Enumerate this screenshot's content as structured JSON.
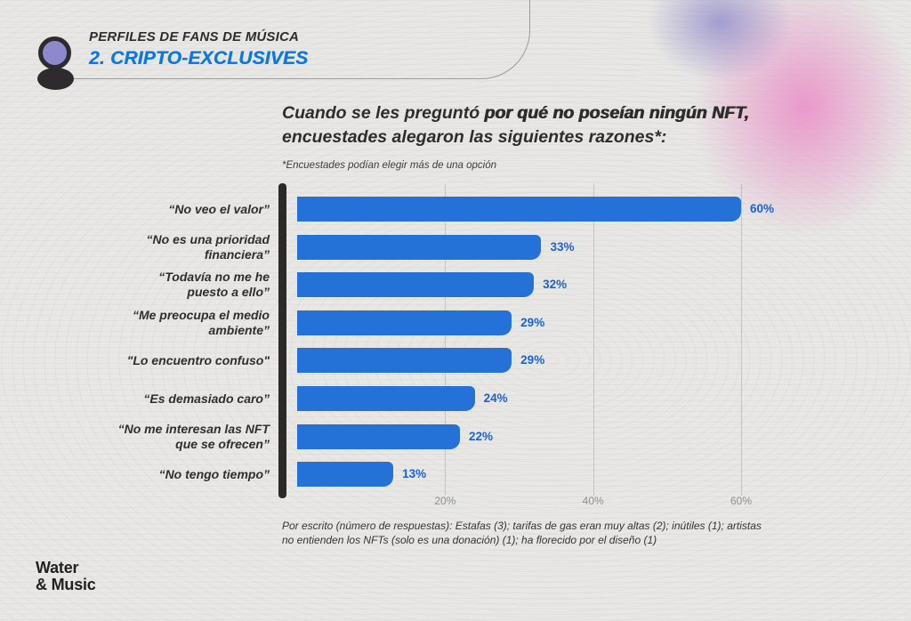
{
  "header": {
    "kicker": "PERFILES DE FANS DE MÚSICA",
    "section_title": "2. CRIPTO-EXCLUSIVES"
  },
  "chart_data": {
    "type": "bar",
    "orientation": "horizontal",
    "title_seg1": "Cuando se les preguntó ",
    "title_seg2": "por qué no poseían ningún NFT,",
    "title_seg3": " encuestades alegaron las siguientes razones*:",
    "note": "*Encuestades podían elegir más de una opción",
    "categories": [
      "“No veo el valor”",
      "“No es una prioridad\nfinanciera”",
      "“Todavía no me he\npuesto a ello”",
      "“Me preocupa el medio\nambiente”",
      "\"Lo encuentro confuso\"",
      "“Es demasiado caro”",
      "“No me interesan las NFT\nque se ofrecen”",
      "“No tengo tiempo”"
    ],
    "values": [
      60,
      33,
      32,
      29,
      29,
      24,
      22,
      13
    ],
    "value_labels": [
      "60%",
      "33%",
      "32%",
      "29%",
      "29%",
      "24%",
      "22%",
      "13%"
    ],
    "xlim": [
      0,
      60
    ],
    "xticks": [
      {
        "value": 20,
        "label": "20%"
      },
      {
        "value": 40,
        "label": "40%"
      },
      {
        "value": 60,
        "label": "60%"
      }
    ],
    "grid": true,
    "legend": "none",
    "bar_color": "#2472d8",
    "value_label_color": "#1b61d1",
    "footnote": "Por escrito (número de respuestas): Estafas (3); tarifas de gas eran muy altas (2); inútiles (1); artistas\nno entienden los NFTs (solo es una donación) (1); ha florecido por el diseño (1)"
  },
  "footer": {
    "logo_line1": "Water",
    "logo_line2": "& Music"
  }
}
